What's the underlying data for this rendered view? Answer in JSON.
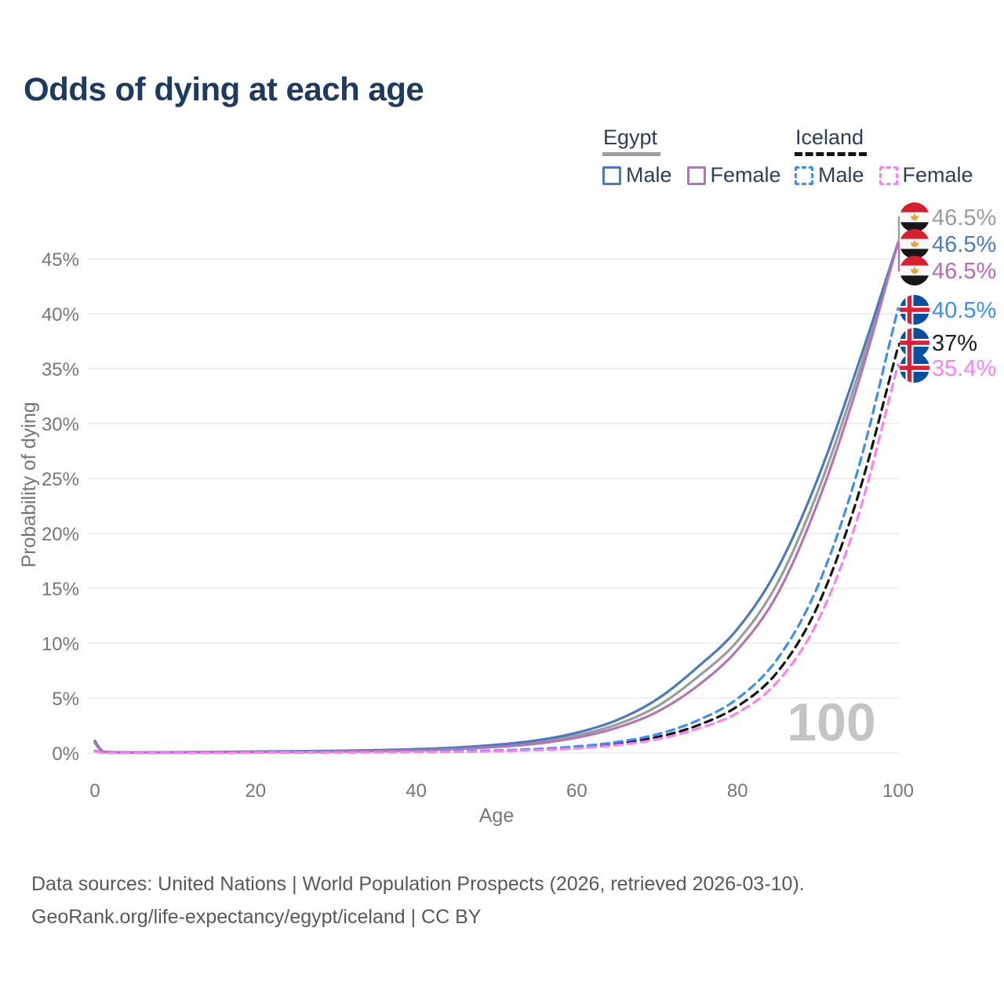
{
  "title": "Odds of dying at each age",
  "watermark": "100",
  "legend": {
    "groups": [
      {
        "label": "Egypt",
        "style": "solid",
        "items": [
          {
            "label": "Male",
            "color": "#4a7abd"
          },
          {
            "label": "Female",
            "color": "#b176b3"
          }
        ]
      },
      {
        "label": "Iceland",
        "style": "dashed",
        "items": [
          {
            "label": "Male",
            "color": "#3f8df4"
          },
          {
            "label": "Female",
            "color": "#fb80f0"
          }
        ]
      }
    ]
  },
  "source_line1": "Data sources: United Nations | World Population Prospects (2026, retrieved 2026-03-10).",
  "source_line2": "GeoRank.org/life-expectancy/egypt/iceland | CC BY",
  "colors": {
    "title": "#1e3a5f",
    "axis_text": "#767676",
    "grid": "#eaeaea",
    "egypt_male": "#4a7abd",
    "egypt_female": "#b176b3",
    "egypt_both": "#9b9b9b",
    "iceland_male": "#3f8df4",
    "iceland_female": "#fb80f0",
    "iceland_both": "#141414",
    "egypt_flag_red": "#d62030",
    "egypt_flag_black": "#17171b",
    "egypt_flag_gold": "#e8a13e",
    "iceland_flag_blue": "#0a4f9e",
    "iceland_flag_red": "#d7213a"
  },
  "chart_data": {
    "type": "line",
    "title": "Odds of dying at each age",
    "xlabel": "Age",
    "ylabel": "Probability of dying",
    "xlim": [
      0,
      100
    ],
    "ylim": [
      0,
      47.5
    ],
    "x_ticks": [
      "0",
      "20",
      "40",
      "60",
      "80",
      "100"
    ],
    "x_tick_values": [
      0,
      20,
      40,
      60,
      80,
      100
    ],
    "y_ticks": [
      "0%",
      "5%",
      "10%",
      "15%",
      "20%",
      "25%",
      "30%",
      "35%",
      "40%",
      "45%"
    ],
    "y_tick_values": [
      0,
      5,
      10,
      15,
      20,
      25,
      30,
      35,
      40,
      45
    ],
    "grid": "horizontal",
    "legend_position": "top-right",
    "hover_age_indicator": "100",
    "series": [
      {
        "name": "Egypt — Male",
        "color": "#4a7abd",
        "dash": "solid",
        "end_label": "46.5%",
        "points": [
          [
            0,
            1.1
          ],
          [
            1,
            0.12
          ],
          [
            5,
            0.06
          ],
          [
            10,
            0.07
          ],
          [
            15,
            0.09
          ],
          [
            20,
            0.13
          ],
          [
            25,
            0.16
          ],
          [
            30,
            0.2
          ],
          [
            35,
            0.26
          ],
          [
            40,
            0.35
          ],
          [
            45,
            0.5
          ],
          [
            50,
            0.75
          ],
          [
            55,
            1.15
          ],
          [
            60,
            1.85
          ],
          [
            65,
            3.0
          ],
          [
            70,
            4.9
          ],
          [
            75,
            7.8
          ],
          [
            80,
            11.3
          ],
          [
            85,
            16.8
          ],
          [
            90,
            25.0
          ],
          [
            95,
            35.3
          ],
          [
            100,
            46.5
          ]
        ]
      },
      {
        "name": "Egypt — Female",
        "color": "#b176b3",
        "dash": "solid",
        "end_label": "46.5%",
        "points": [
          [
            0,
            0.9
          ],
          [
            1,
            0.1
          ],
          [
            5,
            0.04
          ],
          [
            10,
            0.05
          ],
          [
            15,
            0.06
          ],
          [
            20,
            0.08
          ],
          [
            25,
            0.1
          ],
          [
            30,
            0.13
          ],
          [
            35,
            0.17
          ],
          [
            40,
            0.24
          ],
          [
            45,
            0.36
          ],
          [
            50,
            0.55
          ],
          [
            55,
            0.85
          ],
          [
            60,
            1.4
          ],
          [
            65,
            2.3
          ],
          [
            70,
            3.75
          ],
          [
            75,
            6.1
          ],
          [
            80,
            9.4
          ],
          [
            85,
            14.5
          ],
          [
            90,
            22.8
          ],
          [
            95,
            33.6
          ],
          [
            100,
            46.5
          ]
        ]
      },
      {
        "name": "Egypt — Both sexes",
        "color": "#9b9b9b",
        "dash": "solid",
        "end_label": "46.5%",
        "points": [
          [
            0,
            1.0
          ],
          [
            1,
            0.11
          ],
          [
            5,
            0.05
          ],
          [
            10,
            0.06
          ],
          [
            15,
            0.08
          ],
          [
            20,
            0.11
          ],
          [
            25,
            0.14
          ],
          [
            30,
            0.17
          ],
          [
            35,
            0.22
          ],
          [
            40,
            0.3
          ],
          [
            45,
            0.43
          ],
          [
            50,
            0.65
          ],
          [
            55,
            1.0
          ],
          [
            60,
            1.6
          ],
          [
            65,
            2.6
          ],
          [
            70,
            4.25
          ],
          [
            75,
            6.9
          ],
          [
            80,
            10.2
          ],
          [
            85,
            15.5
          ],
          [
            90,
            23.8
          ],
          [
            95,
            34.4
          ],
          [
            100,
            46.5
          ]
        ]
      },
      {
        "name": "Iceland — Male",
        "color": "#3f8df4",
        "dash": "dashed",
        "end_label": "40.5%",
        "points": [
          [
            0,
            0.2
          ],
          [
            1,
            0.03
          ],
          [
            10,
            0.02
          ],
          [
            20,
            0.06
          ],
          [
            30,
            0.08
          ],
          [
            40,
            0.11
          ],
          [
            45,
            0.16
          ],
          [
            50,
            0.23
          ],
          [
            55,
            0.36
          ],
          [
            60,
            0.6
          ],
          [
            65,
            1.0
          ],
          [
            70,
            1.7
          ],
          [
            75,
            2.95
          ],
          [
            80,
            4.95
          ],
          [
            85,
            8.6
          ],
          [
            90,
            15.2
          ],
          [
            95,
            25.8
          ],
          [
            100,
            40.5
          ]
        ]
      },
      {
        "name": "Iceland — Female",
        "color": "#fb80f0",
        "dash": "dashed",
        "end_label": "35.4%",
        "points": [
          [
            0,
            0.15
          ],
          [
            1,
            0.02
          ],
          [
            10,
            0.012
          ],
          [
            20,
            0.04
          ],
          [
            30,
            0.06
          ],
          [
            40,
            0.08
          ],
          [
            45,
            0.11
          ],
          [
            50,
            0.16
          ],
          [
            55,
            0.26
          ],
          [
            60,
            0.42
          ],
          [
            65,
            0.72
          ],
          [
            70,
            1.25
          ],
          [
            75,
            2.2
          ],
          [
            80,
            3.65
          ],
          [
            85,
            6.5
          ],
          [
            90,
            12.0
          ],
          [
            95,
            21.5
          ],
          [
            100,
            35.4
          ]
        ]
      },
      {
        "name": "Iceland — Both sexes",
        "color": "#141414",
        "dash": "dashed",
        "end_label": "37%",
        "points": [
          [
            0,
            0.18
          ],
          [
            1,
            0.025
          ],
          [
            10,
            0.015
          ],
          [
            20,
            0.05
          ],
          [
            30,
            0.07
          ],
          [
            40,
            0.09
          ],
          [
            45,
            0.13
          ],
          [
            50,
            0.19
          ],
          [
            55,
            0.3
          ],
          [
            60,
            0.5
          ],
          [
            65,
            0.85
          ],
          [
            70,
            1.45
          ],
          [
            75,
            2.5
          ],
          [
            80,
            4.25
          ],
          [
            85,
            7.4
          ],
          [
            90,
            13.4
          ],
          [
            95,
            23.4
          ],
          [
            100,
            37.0
          ]
        ]
      }
    ]
  },
  "end_labels": [
    {
      "flag": "egypt",
      "value": "46.5%",
      "color": "#9b9b9b",
      "series_index": 2,
      "dashed": false
    },
    {
      "flag": "egypt",
      "value": "46.5%",
      "color": "#4a7abd",
      "series_index": 0,
      "dashed": false
    },
    {
      "flag": "egypt",
      "value": "46.5%",
      "color": "#b46cb4",
      "series_index": 1,
      "dashed": false
    },
    {
      "flag": "iceland",
      "value": "40.5%",
      "color": "#3f8df4",
      "series_index": 3,
      "dashed": true
    },
    {
      "flag": "iceland",
      "value": "37%",
      "color": "#1c1c1c",
      "series_index": 5,
      "dashed": true
    },
    {
      "flag": "iceland",
      "value": "35.4%",
      "color": "#fb80f0",
      "series_index": 4,
      "dashed": true
    }
  ]
}
